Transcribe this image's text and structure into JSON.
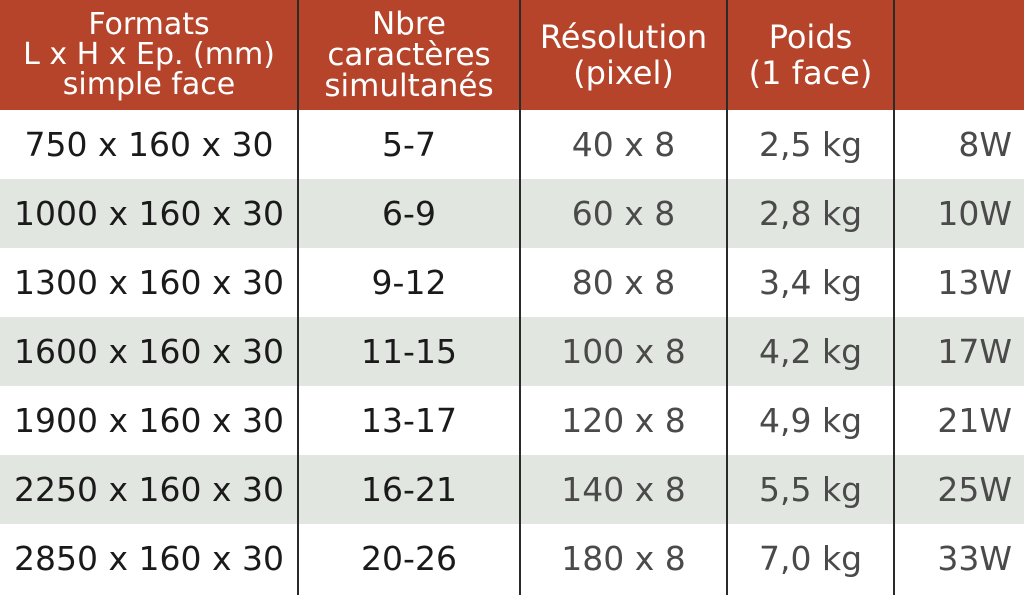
{
  "headers": {
    "formats": "Formats\nL x H x Ep. (mm)\nsimple face",
    "chars": "Nbre\ncaractères\nsimultanés",
    "resolution": "Résolution\n(pixel)",
    "poids": "Poids\n(1 face)",
    "power": ""
  },
  "rows": [
    {
      "format": "750 x 160 x 30",
      "chars": "5-7",
      "resolution": "40 x 8",
      "poids": "2,5 kg",
      "power": "8W"
    },
    {
      "format": "1000 x 160 x 30",
      "chars": "6-9",
      "resolution": "60 x 8",
      "poids": "2,8 kg",
      "power": "10W"
    },
    {
      "format": "1300 x 160 x 30",
      "chars": "9-12",
      "resolution": "80 x 8",
      "poids": "3,4 kg",
      "power": "13W"
    },
    {
      "format": "1600 x 160 x 30",
      "chars": "11-15",
      "resolution": "100 x 8",
      "poids": "4,2 kg",
      "power": "17W"
    },
    {
      "format": "1900 x 160 x 30",
      "chars": "13-17",
      "resolution": "120 x 8",
      "poids": "4,9 kg",
      "power": "21W"
    },
    {
      "format": "2250 x 160 x 30",
      "chars": "16-21",
      "resolution": "140 x 8",
      "poids": "5,5 kg",
      "power": "25W"
    },
    {
      "format": "2850 x 160 x 30",
      "chars": "20-26",
      "resolution": "180 x 8",
      "poids": "7,0 kg",
      "power": "33W"
    }
  ],
  "colors": {
    "header_bg": "#b5442b",
    "header_text": "#ffffff",
    "row_shade": "#e2e6e0",
    "divider": "#2a2a2a"
  }
}
